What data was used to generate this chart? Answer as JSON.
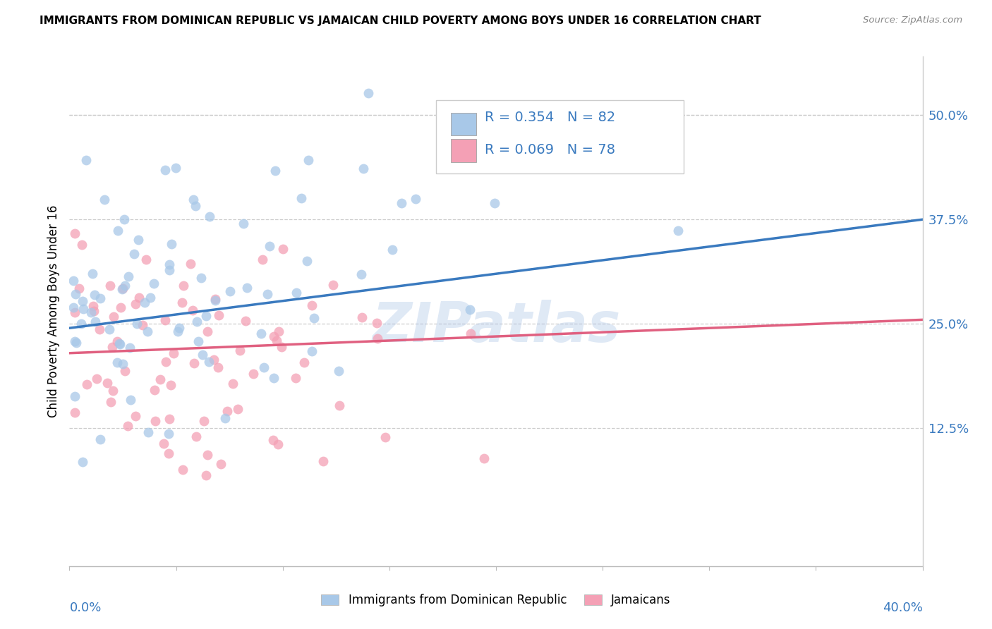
{
  "title": "IMMIGRANTS FROM DOMINICAN REPUBLIC VS JAMAICAN CHILD POVERTY AMONG BOYS UNDER 16 CORRELATION CHART",
  "source": "Source: ZipAtlas.com",
  "ylabel": "Child Poverty Among Boys Under 16",
  "ytick_labels": [
    "12.5%",
    "25.0%",
    "37.5%",
    "50.0%"
  ],
  "ytick_values": [
    0.125,
    0.25,
    0.375,
    0.5
  ],
  "xlim": [
    0.0,
    0.4
  ],
  "ylim": [
    -0.04,
    0.57
  ],
  "watermark": "ZIPatlas",
  "legend_R1": "R = 0.354",
  "legend_N1": "N = 82",
  "legend_R2": "R = 0.069",
  "legend_N2": "N = 78",
  "color_blue": "#a8c8e8",
  "color_pink": "#f4a0b5",
  "line_color_blue": "#3a7abf",
  "line_color_pink": "#e06080",
  "line_color_right_axis": "#3a7abf",
  "scatter_alpha": 0.75,
  "scatter_size": 100,
  "blue_line_start_y": 0.245,
  "blue_line_end_y": 0.375,
  "pink_line_start_y": 0.215,
  "pink_line_end_y": 0.255
}
